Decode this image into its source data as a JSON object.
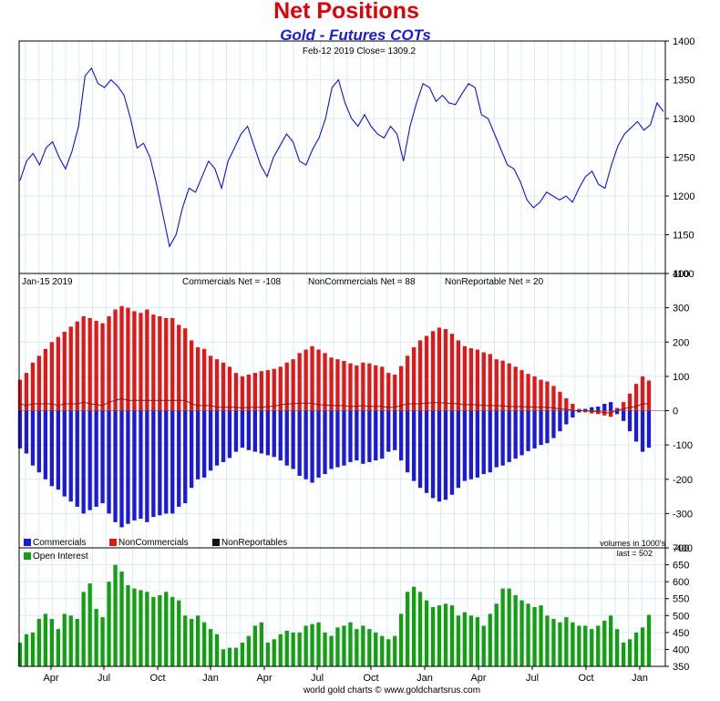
{
  "header": {
    "title": "Net Positions",
    "subtitle": "Gold - Futures COTs",
    "price_caption": "Feb-12  2019    Close= 1309.2",
    "date_caption": "Jan-15  2019",
    "comm_caption": "Commercials Net = -108",
    "noncomm_caption": "NonCommercials Net = 88",
    "nonrep_caption": "NonReportable Net = 20",
    "volume_note": "volumes in 1000's",
    "last_note": "last = 502",
    "footer": "world gold charts © www.goldchartsrus.com"
  },
  "legend": {
    "commercials": "Commercials",
    "noncommercials": "NonCommercials",
    "nonreportables": "NonReportables",
    "open_interest": "Open Interest"
  },
  "colors": {
    "price_line": "#1010e0",
    "commercials": "#1a1ad8",
    "noncommercials": "#e01818",
    "nonreportables": "#7a1a1a",
    "open_interest": "#12a012",
    "grid": "#d8ecf4"
  },
  "x_axis": {
    "labels": [
      "Apr",
      "Jul",
      "Oct",
      "Jan",
      "Apr",
      "Jul",
      "Oct",
      "Jan",
      "Apr",
      "Jul",
      "Oct",
      "Jan"
    ]
  },
  "chart_data": [
    {
      "type": "line",
      "title": "Gold - Futures COTs",
      "ylim": [
        1100,
        1400
      ],
      "yticks": [
        1100,
        1150,
        1200,
        1250,
        1300,
        1350,
        1400
      ],
      "series": [
        {
          "values": [
            1220,
            1245,
            1255,
            1240,
            1262,
            1270,
            1250,
            1235,
            1258,
            1290,
            1355,
            1365,
            1345,
            1340,
            1350,
            1342,
            1330,
            1300,
            1262,
            1268,
            1250,
            1215,
            1175,
            1135,
            1150,
            1185,
            1210,
            1205,
            1225,
            1245,
            1235,
            1210,
            1245,
            1262,
            1280,
            1290,
            1265,
            1240,
            1225,
            1250,
            1265,
            1280,
            1270,
            1245,
            1240,
            1260,
            1275,
            1300,
            1340,
            1350,
            1320,
            1300,
            1290,
            1305,
            1290,
            1280,
            1275,
            1290,
            1280,
            1245,
            1290,
            1320,
            1345,
            1340,
            1322,
            1330,
            1320,
            1318,
            1332,
            1345,
            1340,
            1305,
            1300,
            1280,
            1260,
            1240,
            1235,
            1218,
            1195,
            1185,
            1192,
            1205,
            1200,
            1195,
            1200,
            1192,
            1210,
            1225,
            1232,
            1215,
            1210,
            1240,
            1265,
            1280,
            1288,
            1296,
            1285,
            1292,
            1320,
            1309
          ]
        }
      ]
    },
    {
      "type": "bar",
      "title": "Net Positions",
      "ylim": [
        -400,
        400
      ],
      "yticks": [
        -400,
        -300,
        -200,
        -100,
        0,
        100,
        200,
        300,
        400
      ],
      "series": [
        {
          "name": "Commercials",
          "values": [
            -110,
            -125,
            -160,
            -180,
            -200,
            -220,
            -230,
            -250,
            -265,
            -280,
            -300,
            -290,
            -280,
            -270,
            -300,
            -325,
            -340,
            -330,
            -320,
            -315,
            -325,
            -310,
            -305,
            -300,
            -300,
            -280,
            -270,
            -225,
            -200,
            -195,
            -175,
            -160,
            -150,
            -138,
            -120,
            -108,
            -115,
            -120,
            -125,
            -130,
            -135,
            -145,
            -160,
            -170,
            -190,
            -200,
            -210,
            -195,
            -185,
            -170,
            -165,
            -160,
            -150,
            -145,
            -155,
            -150,
            -145,
            -140,
            -120,
            -115,
            -145,
            -180,
            -205,
            -225,
            -240,
            -255,
            -265,
            -260,
            -245,
            -225,
            -205,
            -200,
            -195,
            -185,
            -180,
            -165,
            -160,
            -150,
            -140,
            -130,
            -118,
            -110,
            -100,
            -95,
            -80,
            -60,
            -40,
            -20,
            -5,
            5,
            10,
            12,
            20,
            25,
            -10,
            -30,
            -60,
            -90,
            -120,
            -108
          ]
        },
        {
          "name": "NonCommercials",
          "values": [
            90,
            110,
            140,
            160,
            180,
            200,
            215,
            230,
            245,
            260,
            275,
            270,
            262,
            255,
            275,
            295,
            305,
            300,
            290,
            285,
            295,
            280,
            275,
            270,
            270,
            250,
            240,
            205,
            185,
            180,
            160,
            150,
            140,
            128,
            110,
            100,
            105,
            110,
            115,
            118,
            122,
            128,
            140,
            150,
            168,
            178,
            188,
            178,
            168,
            155,
            150,
            145,
            138,
            132,
            140,
            138,
            132,
            128,
            110,
            105,
            130,
            160,
            185,
            205,
            218,
            232,
            242,
            238,
            224,
            205,
            188,
            182,
            178,
            170,
            165,
            150,
            146,
            138,
            128,
            118,
            107,
            100,
            90,
            85,
            72,
            55,
            36,
            20,
            5,
            -5,
            -8,
            -10,
            -14,
            -18,
            8,
            25,
            50,
            78,
            100,
            88
          ]
        },
        {
          "name": "NonReportables",
          "values": [
            20,
            15,
            20,
            20,
            20,
            20,
            15,
            20,
            20,
            20,
            25,
            20,
            18,
            15,
            25,
            30,
            35,
            30,
            30,
            30,
            30,
            30,
            30,
            30,
            30,
            30,
            30,
            20,
            15,
            15,
            15,
            10,
            10,
            10,
            10,
            8,
            10,
            10,
            10,
            12,
            13,
            17,
            20,
            20,
            22,
            22,
            22,
            17,
            17,
            15,
            15,
            15,
            12,
            13,
            15,
            12,
            13,
            12,
            10,
            10,
            15,
            20,
            20,
            20,
            22,
            23,
            23,
            22,
            21,
            20,
            17,
            18,
            17,
            15,
            15,
            15,
            14,
            12,
            12,
            12,
            11,
            10,
            10,
            10,
            8,
            5,
            4,
            0,
            0,
            0,
            -2,
            -2,
            -6,
            -7,
            2,
            5,
            10,
            12,
            20,
            20
          ]
        }
      ]
    },
    {
      "type": "bar",
      "title": "Open Interest",
      "ylim": [
        350,
        700
      ],
      "yticks": [
        350,
        400,
        450,
        500,
        550,
        600,
        650,
        700
      ],
      "series": [
        {
          "name": "Open Interest",
          "values": [
            420,
            445,
            450,
            490,
            505,
            490,
            460,
            505,
            500,
            490,
            570,
            595,
            520,
            495,
            600,
            650,
            630,
            590,
            580,
            575,
            570,
            555,
            560,
            570,
            555,
            545,
            500,
            490,
            500,
            480,
            460,
            445,
            400,
            405,
            405,
            420,
            440,
            470,
            480,
            420,
            430,
            445,
            455,
            450,
            450,
            470,
            475,
            480,
            450,
            440,
            465,
            470,
            480,
            460,
            470,
            460,
            450,
            440,
            430,
            440,
            505,
            570,
            585,
            570,
            545,
            525,
            530,
            535,
            530,
            500,
            510,
            500,
            495,
            470,
            505,
            535,
            580,
            580,
            560,
            545,
            535,
            525,
            530,
            500,
            490,
            480,
            495,
            480,
            470,
            470,
            460,
            470,
            485,
            500,
            460,
            420,
            430,
            450,
            465,
            502
          ]
        }
      ]
    }
  ]
}
